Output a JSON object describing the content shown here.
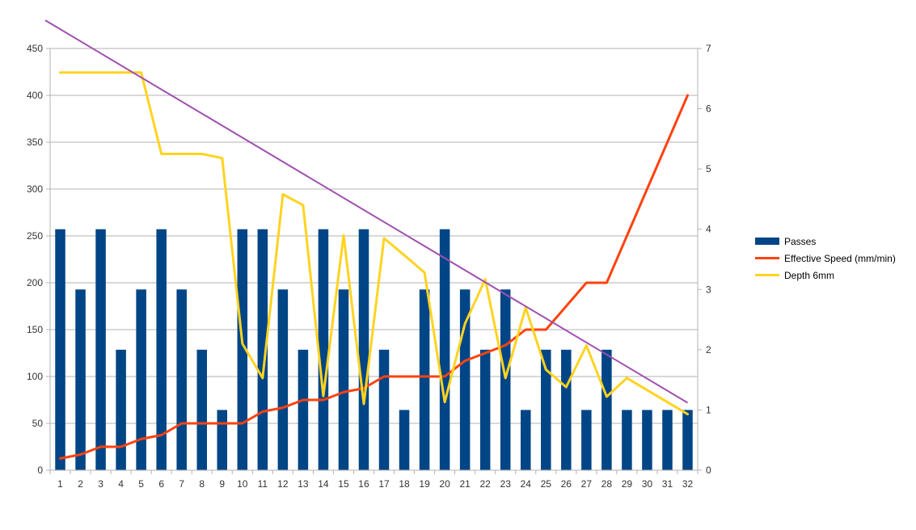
{
  "chart_data": {
    "type": "bar",
    "categories": [
      "1",
      "2",
      "3",
      "4",
      "5",
      "6",
      "7",
      "8",
      "9",
      "10",
      "11",
      "12",
      "13",
      "14",
      "15",
      "16",
      "17",
      "18",
      "19",
      "20",
      "21",
      "22",
      "23",
      "24",
      "25",
      "26",
      "27",
      "28",
      "29",
      "30",
      "31",
      "32"
    ],
    "y_left": {
      "min": 0,
      "max": 450,
      "step": 50
    },
    "y_right": {
      "min": 0,
      "max": 7,
      "step": 1
    },
    "grid": true,
    "legend_position": "right",
    "series": [
      {
        "name": "Passes",
        "type": "bar",
        "axis": "right",
        "color": "#004586",
        "values": [
          4,
          3,
          4,
          2,
          3,
          4,
          3,
          2,
          1,
          4,
          4,
          3,
          2,
          4,
          3,
          4,
          2,
          1,
          3,
          4,
          3,
          2,
          3,
          1,
          2,
          2,
          1,
          2,
          1,
          1,
          1,
          1
        ]
      },
      {
        "name": "Effective Speed (mm/min)",
        "type": "line",
        "axis": "left",
        "color": "#ff420e",
        "values": [
          12.5,
          16.7,
          25,
          25,
          33.3,
          37.5,
          50,
          50,
          50,
          50,
          62.5,
          66.7,
          75,
          75,
          83.3,
          87.5,
          100,
          100,
          100,
          100,
          116.7,
          125,
          133.3,
          150,
          150,
          175,
          200,
          200,
          250,
          300,
          350,
          400
        ]
      },
      {
        "name": "Depth 6mm",
        "type": "line",
        "axis": "right",
        "color": "#ffd320",
        "values": [
          6.6,
          6.6,
          6.6,
          6.6,
          6.6,
          5.25,
          5.25,
          5.25,
          5.18,
          2.1,
          1.53,
          4.58,
          4.4,
          1.23,
          3.9,
          1.1,
          3.85,
          3.57,
          3.28,
          1.13,
          2.43,
          3.17,
          1.53,
          2.7,
          1.67,
          1.38,
          2.07,
          1.22,
          1.53,
          1.33,
          1.13,
          0.93
        ]
      },
      {
        "name": "",
        "type": "trendline",
        "axis": "right",
        "color": "#a050b0",
        "values": [
          7.32,
          7.12,
          6.92,
          6.72,
          6.52,
          6.32,
          6.12,
          5.92,
          5.72,
          5.52,
          5.32,
          5.12,
          4.92,
          4.72,
          4.52,
          4.32,
          4.12,
          3.92,
          3.72,
          3.52,
          3.32,
          3.12,
          2.92,
          2.72,
          2.52,
          2.32,
          2.12,
          1.92,
          1.72,
          1.52,
          1.32,
          1.12
        ]
      }
    ]
  }
}
